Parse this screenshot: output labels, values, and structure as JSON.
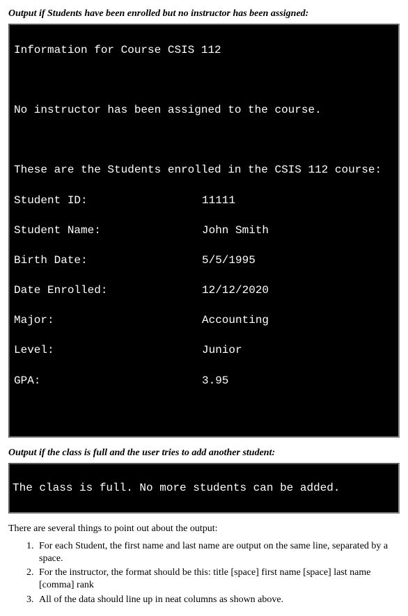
{
  "heading1": "Output if Students have been enrolled but no instructor has been assigned:",
  "term1": {
    "line1": "Information for Course CSIS 112",
    "line2": "No instructor has been assigned to the course.",
    "line3": "These are the Students enrolled in the CSIS 112 course:",
    "rows": [
      {
        "label": "Student ID:",
        "value": "11111"
      },
      {
        "label": "Student Name:",
        "value": "John Smith"
      },
      {
        "label": "Birth Date:",
        "value": "5/5/1995"
      },
      {
        "label": "Date Enrolled:",
        "value": "12/12/2020"
      },
      {
        "label": "Major:",
        "value": "Accounting"
      },
      {
        "label": "Level:",
        "value": "Junior"
      },
      {
        "label": "GPA:",
        "value": "3.95"
      }
    ]
  },
  "heading2": "Output if the class is full and the user tries to add another student:",
  "term2_line": "The class is full. No more students can be added.",
  "body_intro": "There are several things to point out about the output:",
  "bullets": [
    "For each Student, the first name and last name are output on the same line, separated by a space.",
    "For the instructor, the format should be this:   title [space] first name [space] last name [comma] rank",
    "All of the data should line up in neat columns as shown above."
  ],
  "colors": {
    "terminal_bg": "#000000",
    "terminal_fg": "#ffffff",
    "page_bg": "#ffffff",
    "page_fg": "#000000"
  }
}
